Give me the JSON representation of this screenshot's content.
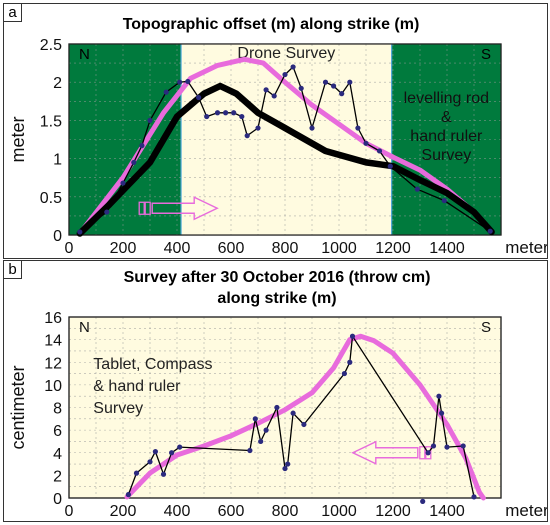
{
  "chart_data": [
    {
      "panel_label": "a",
      "type": "line",
      "title": "Topographic offset (m) along strike (m)",
      "xlabel": "meter",
      "ylabel": "meter",
      "xlim": [
        0,
        1600
      ],
      "ylim": [
        0,
        2.5
      ],
      "xticks": [
        0,
        200,
        400,
        600,
        800,
        1000,
        1200,
        1400
      ],
      "yticks": [
        0,
        0.5,
        1,
        1.5,
        2,
        2.5
      ],
      "grid": true,
      "zones": [
        {
          "x0": 0,
          "x1": 415,
          "color": "#007a3d",
          "label": ""
        },
        {
          "x0": 415,
          "x1": 1195,
          "color": "#fffbe0",
          "label": "Drone Survey"
        },
        {
          "x0": 1195,
          "x1": 1600,
          "color": "#007a3d",
          "label": "levelling rod & hand ruler Survey"
        }
      ],
      "corner_labels": {
        "left": "N",
        "right": "S"
      },
      "arrow_direction": "right",
      "series": [
        {
          "style": "trend",
          "color": "#e86bdc",
          "points": [
            [
              40,
              0.02
            ],
            [
              200,
              0.75
            ],
            [
              350,
              1.6
            ],
            [
              450,
              2.05
            ],
            [
              550,
              2.22
            ],
            [
              650,
              2.3
            ],
            [
              720,
              2.25
            ],
            [
              800,
              2.0
            ],
            [
              900,
              1.7
            ],
            [
              1000,
              1.45
            ],
            [
              1100,
              1.2
            ],
            [
              1200,
              1.02
            ],
            [
              1300,
              0.85
            ],
            [
              1400,
              0.6
            ],
            [
              1500,
              0.3
            ],
            [
              1565,
              0.05
            ]
          ]
        },
        {
          "style": "profile",
          "color": "#000000",
          "points": [
            [
              40,
              0.02
            ],
            [
              150,
              0.4
            ],
            [
              300,
              0.95
            ],
            [
              400,
              1.55
            ],
            [
              500,
              1.85
            ],
            [
              560,
              1.95
            ],
            [
              620,
              1.85
            ],
            [
              700,
              1.6
            ],
            [
              800,
              1.4
            ],
            [
              950,
              1.1
            ],
            [
              1100,
              0.95
            ],
            [
              1200,
              0.9
            ],
            [
              1300,
              0.72
            ],
            [
              1400,
              0.55
            ],
            [
              1500,
              0.3
            ],
            [
              1565,
              0.04
            ]
          ]
        },
        {
          "style": "measured",
          "color": "#000000",
          "points": [
            [
              40,
              0.04
            ],
            [
              140,
              0.3
            ],
            [
              200,
              0.68
            ],
            [
              240,
              0.95
            ],
            [
              270,
              1.17
            ],
            [
              300,
              1.5
            ],
            [
              360,
              1.87
            ],
            [
              410,
              2.0
            ],
            [
              440,
              2.01
            ],
            [
              480,
              1.8
            ],
            [
              510,
              1.55
            ],
            [
              550,
              1.6
            ],
            [
              580,
              1.6
            ],
            [
              610,
              1.6
            ],
            [
              640,
              1.55
            ],
            [
              660,
              1.3
            ],
            [
              700,
              1.4
            ],
            [
              730,
              1.9
            ],
            [
              760,
              1.82
            ],
            [
              800,
              2.1
            ],
            [
              830,
              2.2
            ],
            [
              860,
              1.92
            ],
            [
              900,
              1.4
            ],
            [
              950,
              2.0
            ],
            [
              980,
              1.95
            ],
            [
              1010,
              1.85
            ],
            [
              1040,
              2.0
            ],
            [
              1070,
              1.4
            ],
            [
              1100,
              1.2
            ],
            [
              1150,
              1.1
            ],
            [
              1190,
              0.9
            ],
            [
              1290,
              0.6
            ],
            [
              1390,
              0.45
            ],
            [
              1560,
              0.05
            ]
          ]
        }
      ]
    },
    {
      "panel_label": "b",
      "type": "line",
      "title": "Survey after 30 October 2016 (throw cm)",
      "subtitle": "along strike (m)",
      "xlabel": "meter",
      "ylabel": "centimeter",
      "xlim": [
        0,
        1600
      ],
      "ylim": [
        0,
        16
      ],
      "xticks": [
        0,
        200,
        400,
        600,
        800,
        1000,
        1200,
        1400
      ],
      "yticks": [
        0,
        2,
        4,
        6,
        8,
        10,
        12,
        14,
        16
      ],
      "grid": true,
      "background": "#fffbe0",
      "corner_labels": {
        "left": "N",
        "right": "S"
      },
      "annotation": "Tablet, Compass & hand ruler Survey",
      "arrow_direction": "left",
      "series": [
        {
          "style": "trend",
          "color": "#e86bdc",
          "points": [
            [
              215,
              0.1
            ],
            [
              300,
              2.2
            ],
            [
              400,
              3.8
            ],
            [
              500,
              4.6
            ],
            [
              600,
              5.5
            ],
            [
              700,
              6.6
            ],
            [
              800,
              7.8
            ],
            [
              900,
              9.3
            ],
            [
              980,
              11.5
            ],
            [
              1040,
              14.0
            ],
            [
              1080,
              14.3
            ],
            [
              1130,
              13.9
            ],
            [
              1200,
              12.8
            ],
            [
              1300,
              10.0
            ],
            [
              1400,
              6.5
            ],
            [
              1470,
              3.5
            ],
            [
              1520,
              0.5
            ],
            [
              1535,
              0
            ]
          ]
        },
        {
          "style": "measured",
          "color": "#000000",
          "points": [
            [
              220,
              0.3
            ],
            [
              250,
              2.2
            ],
            [
              300,
              3.2
            ],
            [
              320,
              4.1
            ],
            [
              350,
              2.1
            ],
            [
              380,
              4.0
            ],
            [
              410,
              4.5
            ],
            [
              670,
              4.2
            ],
            [
              690,
              7.0
            ],
            [
              710,
              5.0
            ],
            [
              730,
              6.0
            ],
            [
              770,
              8.0
            ],
            [
              800,
              2.6
            ],
            [
              810,
              3.0
            ],
            [
              830,
              7.5
            ],
            [
              870,
              6.5
            ],
            [
              1020,
              11.0
            ],
            [
              1040,
              12.0
            ],
            [
              1050,
              14.3
            ],
            [
              1330,
              4.0
            ],
            [
              1350,
              4.6
            ],
            [
              1370,
              9.0
            ],
            [
              1380,
              7.5
            ],
            [
              1400,
              4.5
            ],
            [
              1460,
              4.6
            ],
            [
              1500,
              0.1
            ]
          ],
          "outliers": [
            [
              1310,
              -0.3
            ]
          ]
        }
      ]
    }
  ]
}
